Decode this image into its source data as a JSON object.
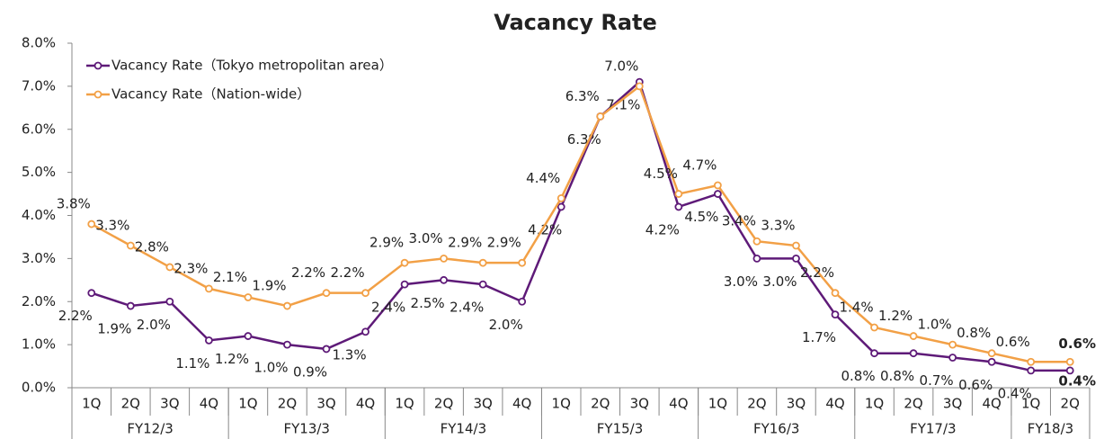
{
  "chart_data": {
    "type": "line",
    "title": "Vacancy Rate",
    "categories": [
      "1Q",
      "2Q",
      "3Q",
      "4Q",
      "1Q",
      "2Q",
      "3Q",
      "4Q",
      "1Q",
      "2Q",
      "3Q",
      "4Q",
      "1Q",
      "2Q",
      "3Q",
      "4Q",
      "1Q",
      "2Q",
      "3Q",
      "4Q",
      "1Q",
      "2Q",
      "3Q",
      "4Q",
      "1Q",
      "2Q"
    ],
    "category_groups": [
      {
        "label": "FY12/3",
        "count": 4
      },
      {
        "label": "FY13/3",
        "count": 4
      },
      {
        "label": "FY14/3",
        "count": 4
      },
      {
        "label": "FY15/3",
        "count": 4
      },
      {
        "label": "FY16/3",
        "count": 4
      },
      {
        "label": "FY17/3",
        "count": 4
      },
      {
        "label": "FY18/3",
        "count": 2
      }
    ],
    "series": [
      {
        "name": "Vacancy Rate（Tokyo metropolitan area）",
        "color": "#5e1a78",
        "values": [
          2.2,
          1.9,
          2.0,
          1.1,
          1.2,
          1.0,
          0.9,
          1.3,
          2.4,
          2.5,
          2.4,
          2.0,
          4.2,
          6.3,
          7.1,
          4.2,
          4.5,
          3.0,
          3.0,
          1.7,
          0.8,
          0.8,
          0.7,
          0.6,
          0.4,
          0.4
        ],
        "value_labels": [
          "2.2%",
          "1.9%",
          "2.0%",
          "1.1%",
          "1.2%",
          "1.0%",
          "0.9%",
          "1.3%",
          "2.4%",
          "2.5%",
          "2.4%",
          "2.0%",
          "4.2%",
          "6.3%",
          "7.1%",
          "4.2%",
          "4.5%",
          "3.0%",
          "3.0%",
          "1.7%",
          "0.8%",
          "0.8%",
          "0.7%",
          "0.6%",
          "0.4%",
          "0.4%"
        ]
      },
      {
        "name": "Vacancy Rate（Nation-wide）",
        "color": "#f2a046",
        "values": [
          3.8,
          3.3,
          2.8,
          2.3,
          2.1,
          1.9,
          2.2,
          2.2,
          2.9,
          3.0,
          2.9,
          2.9,
          4.4,
          6.3,
          7.0,
          4.5,
          4.7,
          3.4,
          3.3,
          2.2,
          1.4,
          1.2,
          1.0,
          0.8,
          0.6,
          0.6
        ],
        "value_labels": [
          "3.8%",
          "3.3%",
          "2.8%",
          "2.3%",
          "2.1%",
          "1.9%",
          "2.2%",
          "2.2%",
          "2.9%",
          "3.0%",
          "2.9%",
          "2.9%",
          "4.4%",
          "6.3%",
          "7.0%",
          "4.5%",
          "4.7%",
          "3.4%",
          "3.3%",
          "2.2%",
          "1.4%",
          "1.2%",
          "1.0%",
          "0.8%",
          "0.6%",
          "0.6%"
        ]
      }
    ],
    "ylim": [
      0,
      8
    ],
    "yticks": [
      {
        "value": 0,
        "label": "0.0%"
      },
      {
        "value": 1,
        "label": "1.0%"
      },
      {
        "value": 2,
        "label": "2.0%"
      },
      {
        "value": 3,
        "label": "3.0%"
      },
      {
        "value": 4,
        "label": "4.0%"
      },
      {
        "value": 5,
        "label": "5.0%"
      },
      {
        "value": 6,
        "label": "6.0%"
      },
      {
        "value": 7,
        "label": "7.0%"
      },
      {
        "value": 8,
        "label": "8.0%"
      }
    ],
    "grid": false,
    "legend": "upper left",
    "highlight_last_label": true
  }
}
